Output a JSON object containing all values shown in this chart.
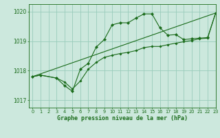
{
  "bg_color": "#cce8dd",
  "grid_color": "#99ccbb",
  "line_color": "#1a6b1a",
  "marker_color": "#1a6b1a",
  "title": "Graphe pression niveau de la mer (hPa)",
  "xlim": [
    -0.5,
    23
  ],
  "ylim": [
    1016.75,
    1020.25
  ],
  "yticks": [
    1017,
    1018,
    1019,
    1020
  ],
  "xticks": [
    0,
    1,
    2,
    3,
    4,
    5,
    6,
    7,
    8,
    9,
    10,
    11,
    12,
    13,
    14,
    15,
    16,
    17,
    18,
    19,
    20,
    21,
    22,
    23
  ],
  "series1_x": [
    0,
    1,
    3,
    4,
    5,
    6,
    7,
    8,
    9,
    10,
    11,
    12,
    13,
    14,
    15,
    16,
    17,
    18,
    19,
    20,
    21,
    22,
    23
  ],
  "series1_y": [
    1017.8,
    1017.85,
    1017.75,
    1017.5,
    1017.3,
    1018.05,
    1018.25,
    1018.8,
    1019.05,
    1019.55,
    1019.62,
    1019.62,
    1019.78,
    1019.92,
    1019.92,
    1019.45,
    1019.2,
    1019.22,
    1019.05,
    1019.08,
    1019.1,
    1019.12,
    1019.95
  ],
  "series2_x": [
    0,
    1,
    3,
    4,
    5,
    6,
    7,
    8,
    9,
    10,
    11,
    12,
    13,
    14,
    15,
    16,
    17,
    18,
    19,
    20,
    21,
    22,
    23
  ],
  "series2_y": [
    1017.8,
    1017.85,
    1017.75,
    1017.62,
    1017.38,
    1017.65,
    1018.05,
    1018.28,
    1018.45,
    1018.52,
    1018.58,
    1018.62,
    1018.68,
    1018.78,
    1018.82,
    1018.82,
    1018.88,
    1018.93,
    1018.98,
    1019.02,
    1019.08,
    1019.1,
    1019.95
  ],
  "series3_x": [
    0,
    23
  ],
  "series3_y": [
    1017.8,
    1019.95
  ]
}
